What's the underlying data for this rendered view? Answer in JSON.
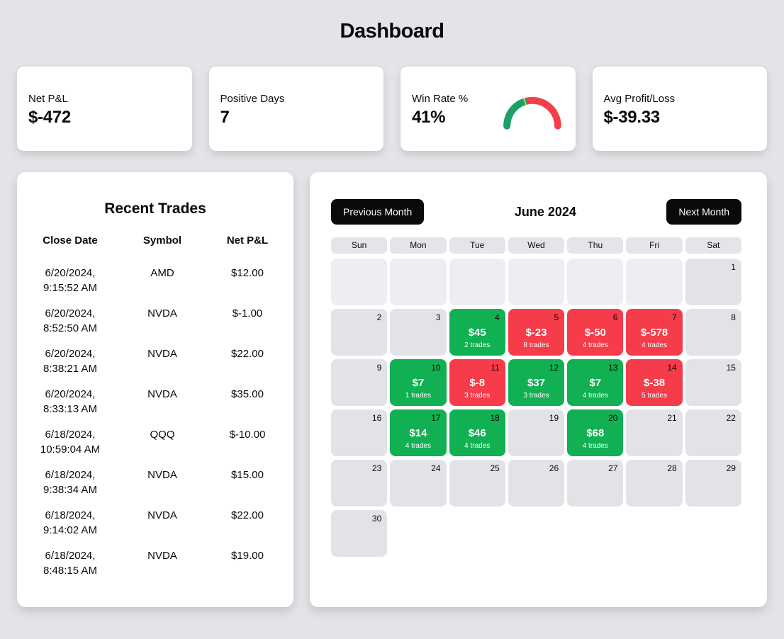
{
  "page_title": "Dashboard",
  "stats": {
    "net_pnl": {
      "label": "Net P&L",
      "value": "$-472"
    },
    "positive_days": {
      "label": "Positive Days",
      "value": "7"
    },
    "win_rate": {
      "label": "Win Rate %",
      "value": "41%",
      "gauge": {
        "type": "gauge",
        "percent": 41,
        "green_color": "#18a267",
        "red_color": "#f2404b",
        "separator_color": "#f3b75d"
      }
    },
    "avg_profit_loss": {
      "label": "Avg Profit/Loss",
      "value": "$-39.33"
    }
  },
  "recent_trades": {
    "title": "Recent Trades",
    "columns": [
      "Close Date",
      "Symbol",
      "Net P&L"
    ],
    "rows": [
      {
        "date": "6/20/2024,",
        "time": "9:15:52 AM",
        "symbol": "AMD",
        "pnl": "$12.00"
      },
      {
        "date": "6/20/2024,",
        "time": "8:52:50 AM",
        "symbol": "NVDA",
        "pnl": "$-1.00"
      },
      {
        "date": "6/20/2024,",
        "time": "8:38:21 AM",
        "symbol": "NVDA",
        "pnl": "$22.00"
      },
      {
        "date": "6/20/2024,",
        "time": "8:33:13 AM",
        "symbol": "NVDA",
        "pnl": "$35.00"
      },
      {
        "date": "6/18/2024,",
        "time": "10:59:04 AM",
        "symbol": "QQQ",
        "pnl": "$-10.00"
      },
      {
        "date": "6/18/2024,",
        "time": "9:38:34 AM",
        "symbol": "NVDA",
        "pnl": "$15.00"
      },
      {
        "date": "6/18/2024,",
        "time": "9:14:02 AM",
        "symbol": "NVDA",
        "pnl": "$22.00"
      },
      {
        "date": "6/18/2024,",
        "time": "8:48:15 AM",
        "symbol": "NVDA",
        "pnl": "$19.00"
      }
    ]
  },
  "calendar": {
    "prev_button_label": "Previous Month",
    "title": "June 2024",
    "next_button_label": "Next Month",
    "weekdays": [
      "Sun",
      "Mon",
      "Tue",
      "Wed",
      "Thu",
      "Fri",
      "Sat"
    ],
    "leading_empty_cells": 6,
    "win_color": "#10b053",
    "loss_color": "#f63b4a",
    "days": [
      {
        "day": 1
      },
      {
        "day": 2
      },
      {
        "day": 3
      },
      {
        "day": 4,
        "pnl": "$45",
        "trades": "2 trades",
        "type": "win"
      },
      {
        "day": 5,
        "pnl": "$-23",
        "trades": "8 trades",
        "type": "loss"
      },
      {
        "day": 6,
        "pnl": "$-50",
        "trades": "4 trades",
        "type": "loss"
      },
      {
        "day": 7,
        "pnl": "$-578",
        "trades": "4 trades",
        "type": "loss"
      },
      {
        "day": 8
      },
      {
        "day": 9
      },
      {
        "day": 10,
        "pnl": "$7",
        "trades": "1 trades",
        "type": "win"
      },
      {
        "day": 11,
        "pnl": "$-8",
        "trades": "3 trades",
        "type": "loss"
      },
      {
        "day": 12,
        "pnl": "$37",
        "trades": "3 trades",
        "type": "win"
      },
      {
        "day": 13,
        "pnl": "$7",
        "trades": "4 trades",
        "type": "win"
      },
      {
        "day": 14,
        "pnl": "$-38",
        "trades": "5 trades",
        "type": "loss"
      },
      {
        "day": 15
      },
      {
        "day": 16
      },
      {
        "day": 17,
        "pnl": "$14",
        "trades": "4 trades",
        "type": "win"
      },
      {
        "day": 18,
        "pnl": "$46",
        "trades": "4 trades",
        "type": "win"
      },
      {
        "day": 19
      },
      {
        "day": 20,
        "pnl": "$68",
        "trades": "4 trades",
        "type": "win"
      },
      {
        "day": 21
      },
      {
        "day": 22
      },
      {
        "day": 23
      },
      {
        "day": 24
      },
      {
        "day": 25
      },
      {
        "day": 26
      },
      {
        "day": 27
      },
      {
        "day": 28
      },
      {
        "day": 29
      },
      {
        "day": 30
      }
    ]
  }
}
